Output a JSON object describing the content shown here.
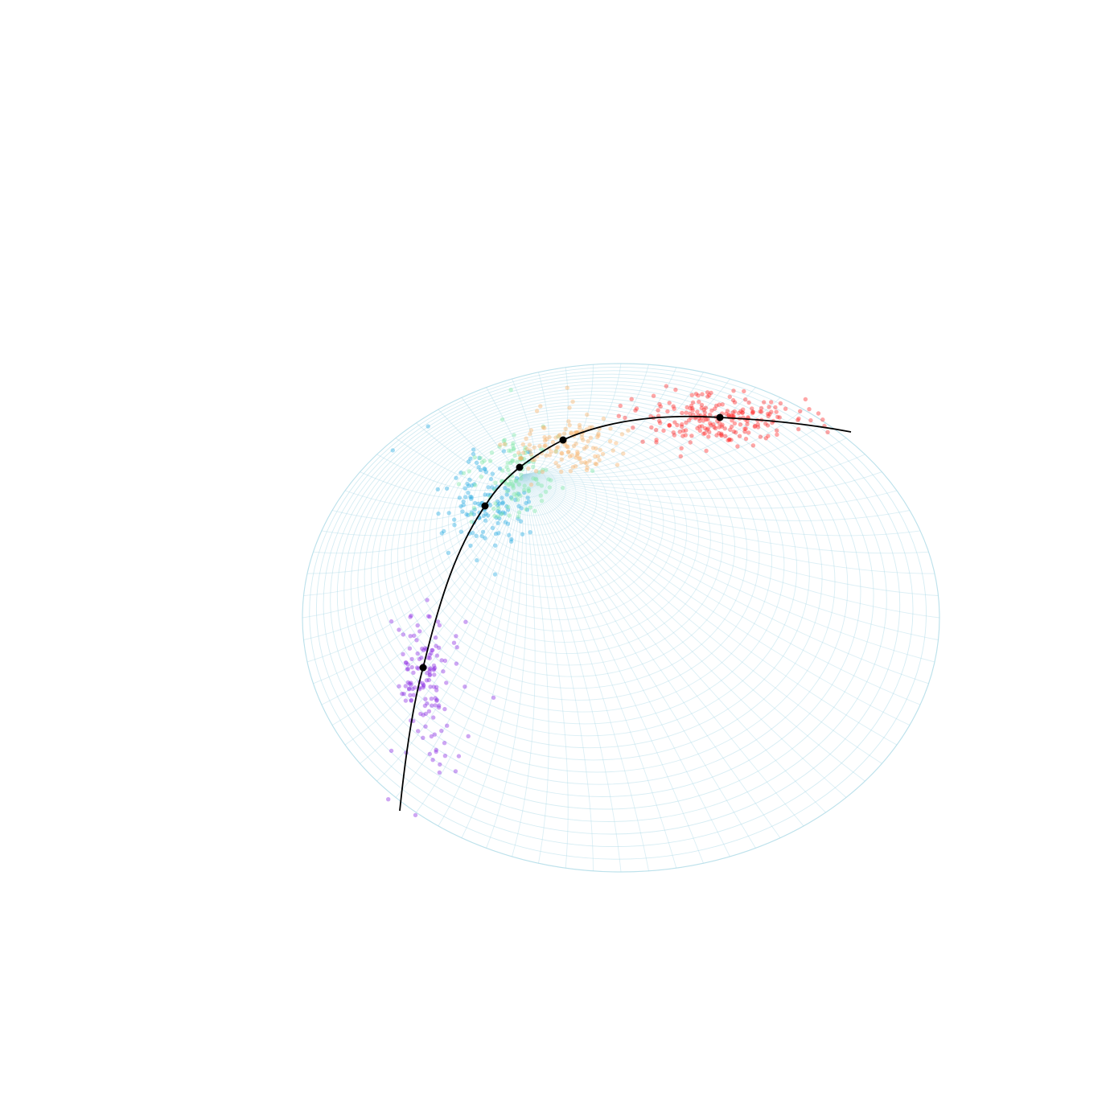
{
  "figure": {
    "background": "#ffffff",
    "mesh_color": "#a8d8e6",
    "geodesic_color": "#000000"
  },
  "clusters": [
    {
      "name": "purple-cluster",
      "color": "#8a2be2",
      "count": 140
    },
    {
      "name": "blue-cluster",
      "color": "#29abe2",
      "count": 130
    },
    {
      "name": "green-cluster",
      "color": "#7ee8a8",
      "count": 120
    },
    {
      "name": "orange-cluster",
      "color": "#f9b26b",
      "count": 130
    },
    {
      "name": "red-cluster",
      "color": "#ff2a2a",
      "count": 220
    }
  ]
}
